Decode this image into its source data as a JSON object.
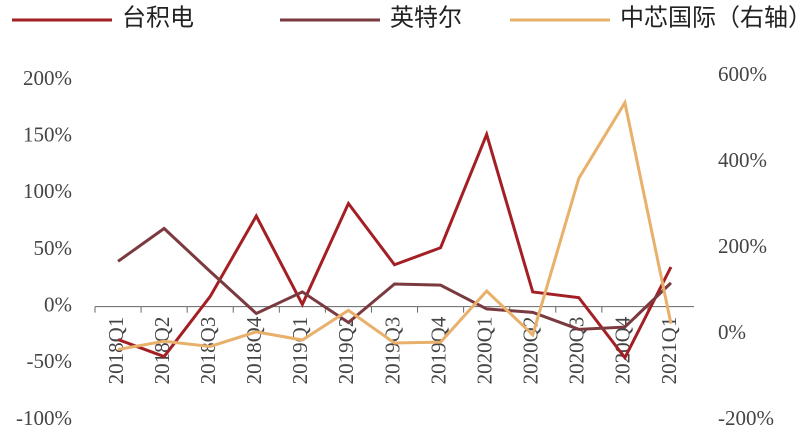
{
  "chart_data": {
    "type": "line",
    "categories": [
      "2018Q1",
      "2018Q2",
      "2018Q3",
      "2018Q4",
      "2019Q1",
      "2019Q2",
      "2019Q3",
      "2019Q4",
      "2020Q1",
      "2020Q2",
      "2020Q3",
      "2020Q4",
      "2021Q1"
    ],
    "series": [
      {
        "name": "台积电",
        "color": "#a31f24",
        "values": [
          -29,
          -44,
          9,
          80,
          2,
          91,
          37,
          52,
          152,
          13,
          8,
          -45,
          35
        ]
      },
      {
        "name": "英特尔",
        "color": "#7b3a3f",
        "values": [
          40,
          69,
          31,
          -6,
          13,
          -14,
          20,
          19,
          -2,
          -5,
          -20,
          -18,
          21
        ]
      },
      {
        "name": "中芯国际（右轴）",
        "color": "#e8b06a",
        "axis": "y2",
        "values": [
          -36,
          -17,
          -29,
          5,
          -14,
          55,
          -21,
          -19,
          100,
          -2,
          362,
          538,
          24
        ]
      }
    ],
    "ylim": [
      -100,
      200
    ],
    "yticks": [
      {
        "value": -100,
        "label": "-100%"
      },
      {
        "value": -50,
        "label": "-50%"
      },
      {
        "value": 0,
        "label": "0%"
      },
      {
        "value": 50,
        "label": "50%"
      },
      {
        "value": 100,
        "label": "100%"
      },
      {
        "value": 150,
        "label": "150%"
      },
      {
        "value": 200,
        "label": "200%"
      }
    ],
    "y2lim": [
      -200,
      600
    ],
    "y2ticks": [
      {
        "value": -200,
        "label": "-200%"
      },
      {
        "value": 0,
        "label": "0%"
      },
      {
        "value": 200,
        "label": "200%"
      },
      {
        "value": 400,
        "label": "400%"
      },
      {
        "value": 600,
        "label": "600%"
      }
    ]
  }
}
